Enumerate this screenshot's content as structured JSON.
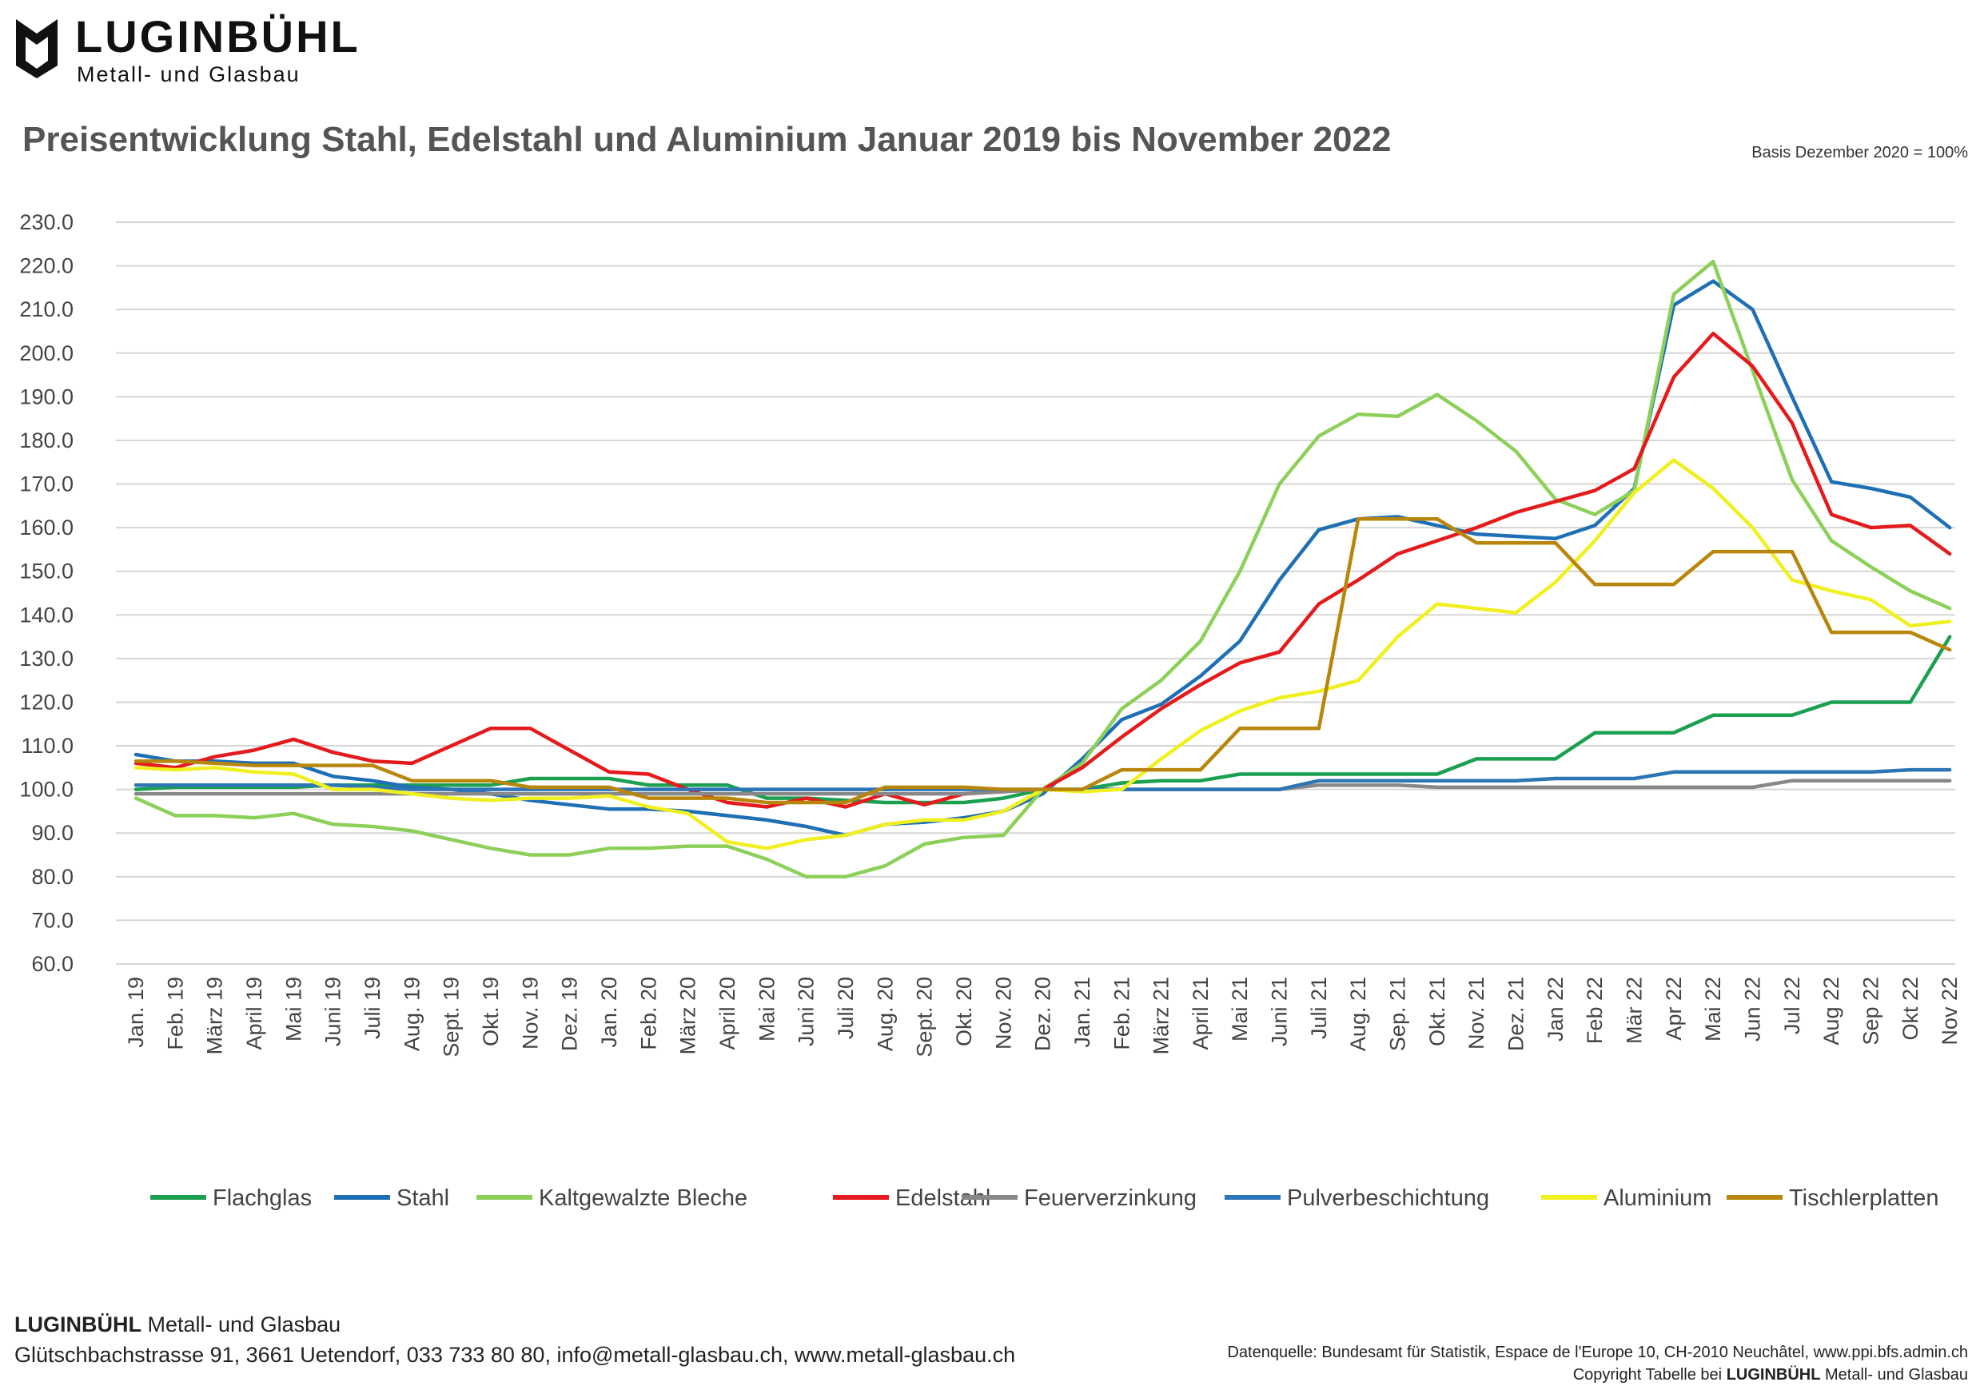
{
  "brand": {
    "name": "LUGINBÜHL",
    "subtitle": "Metall- und Glasbau"
  },
  "header": {
    "title": "Preisentwicklung Stahl, Edelstahl und Aluminium Januar 2019 bis November 2022",
    "basis": "Basis Dezember 2020 = 100%"
  },
  "chart_data": {
    "type": "line",
    "title": "Preisentwicklung Stahl, Edelstahl und Aluminium Januar 2019 bis November 2022",
    "xlabel": "",
    "ylabel": "",
    "ylim": [
      60,
      230
    ],
    "yticks": [
      "60.0",
      "70.0",
      "80.0",
      "90.0",
      "100.0",
      "110.0",
      "120.0",
      "130.0",
      "140.0",
      "150.0",
      "160.0",
      "170.0",
      "180.0",
      "190.0",
      "200.0",
      "210.0",
      "220.0",
      "230.0"
    ],
    "grid": true,
    "legend_position": "bottom",
    "categories": [
      "Jan. 19",
      "Feb. 19",
      "März 19",
      "April 19",
      "Mai 19",
      "Juni 19",
      "Juli 19",
      "Aug. 19",
      "Sept. 19",
      "Okt. 19",
      "Nov. 19",
      "Dez. 19",
      "Jan. 20",
      "Feb. 20",
      "März 20",
      "April 20",
      "Mai 20",
      "Juni 20",
      "Juli 20",
      "Aug. 20",
      "Sept. 20",
      "Okt. 20",
      "Nov. 20",
      "Dez. 20",
      "Jan. 21",
      "Feb. 21",
      "März 21",
      "April 21",
      "Mai 21",
      "Juni 21",
      "Juli 21",
      "Aug. 21",
      "Sep. 21",
      "Okt. 21",
      "Nov. 21",
      "Dez. 21",
      "Jan 22",
      "Feb 22",
      "Mär 22",
      "Apr 22",
      "Mai 22",
      "Jun 22",
      "Jul 22",
      "Aug 22",
      "Sep 22",
      "Okt 22",
      "Nov 22"
    ],
    "series": [
      {
        "name": "Flachglas",
        "color": "#1aa050",
        "values": [
          100,
          100.5,
          100.5,
          100.5,
          100.5,
          101,
          101,
          101,
          101,
          101,
          102.5,
          102.5,
          102.5,
          101,
          101,
          101,
          98,
          98,
          97.5,
          97,
          97,
          97,
          98,
          100,
          100,
          101.5,
          102,
          102,
          103.5,
          103.5,
          103.5,
          103.5,
          103.5,
          103.5,
          107,
          107,
          107,
          113,
          113,
          113,
          117,
          117,
          117,
          120,
          120,
          120,
          135
        ]
      },
      {
        "name": "Stahl",
        "color": "#1f6fb5",
        "values": [
          108,
          106.5,
          106.5,
          106,
          106,
          103,
          102,
          100.5,
          100,
          99,
          97.5,
          96.5,
          95.5,
          95.5,
          95,
          94,
          93,
          91.5,
          89.5,
          92,
          92.5,
          93.5,
          95,
          99,
          107,
          116,
          119.5,
          126,
          134,
          148,
          159.5,
          162,
          162.5,
          160.5,
          158.5,
          158,
          157.5,
          160.5,
          169,
          211,
          216.5,
          210,
          190,
          170.5,
          169,
          167,
          160
        ]
      },
      {
        "name": "Kaltgewalzte Bleche",
        "color": "#8cd05a",
        "values": [
          98,
          94,
          94,
          93.5,
          94.5,
          92,
          91.5,
          90.5,
          88.5,
          86.5,
          85,
          85,
          86.5,
          86.5,
          87,
          87,
          84,
          80,
          80,
          82.5,
          87.5,
          89,
          89.5,
          100,
          106,
          118.5,
          125,
          134,
          150,
          170,
          181,
          186,
          185.5,
          190.5,
          184.5,
          177.5,
          166.5,
          163,
          168.5,
          213.5,
          221,
          196,
          171,
          157,
          151,
          145.5,
          141.5
        ]
      },
      {
        "name": "Edelstahl",
        "color": "#e41a1c",
        "values": [
          106,
          105,
          107.5,
          109,
          111.5,
          108.5,
          106.5,
          106,
          110,
          114,
          114,
          109,
          104,
          103.5,
          100,
          97,
          96,
          98,
          96,
          99,
          96.5,
          99,
          99.5,
          100,
          105,
          112,
          118.5,
          124,
          129,
          131.5,
          142.5,
          148,
          154,
          157,
          160,
          163.5,
          166,
          168.5,
          173.5,
          194.5,
          204.5,
          197,
          184,
          163,
          160,
          160.5,
          154
        ]
      },
      {
        "name": "Feuerverzinkung",
        "color": "#888888",
        "values": [
          99,
          99,
          99,
          99,
          99,
          99,
          99,
          99,
          99,
          99,
          99,
          99,
          99,
          99,
          99,
          99,
          99,
          99,
          99,
          99,
          99,
          99,
          99.5,
          100,
          100,
          100,
          100,
          100,
          100,
          100,
          101,
          101,
          101,
          100.5,
          100.5,
          100.5,
          100.5,
          100.5,
          100.5,
          100.5,
          100.5,
          100.5,
          102,
          102,
          102,
          102,
          102
        ]
      },
      {
        "name": "Pulverbeschichtung",
        "color": "#2e75b6",
        "values": [
          101,
          101,
          101,
          101,
          101,
          101,
          100.5,
          100,
          100,
          100,
          100,
          100,
          100,
          100,
          100,
          100,
          100,
          100,
          100,
          100,
          100,
          100,
          100,
          100,
          100,
          100,
          100,
          100,
          100,
          100,
          102,
          102,
          102,
          102,
          102,
          102,
          102.5,
          102.5,
          102.5,
          104,
          104,
          104,
          104,
          104,
          104,
          104.5,
          104.5
        ]
      },
      {
        "name": "Aluminium",
        "color": "#f0f020",
        "values": [
          105,
          104.5,
          105,
          104,
          103.5,
          100,
          100,
          99,
          98,
          97.5,
          98,
          98,
          98.5,
          96,
          94.5,
          88,
          86.5,
          88.5,
          89.5,
          92,
          93,
          93,
          95,
          100,
          99.5,
          100,
          107,
          113.5,
          118,
          121,
          122.5,
          125,
          135,
          142.5,
          141.5,
          140.5,
          147.5,
          157,
          168,
          175.5,
          169,
          160,
          148,
          145.5,
          143.5,
          137.5,
          138.5
        ]
      },
      {
        "name": "Tischlerplatten",
        "color": "#b8860b",
        "values": [
          106.5,
          106.5,
          106,
          105.5,
          105.5,
          105.5,
          105.5,
          102,
          102,
          102,
          100.5,
          100.5,
          100.5,
          98,
          98,
          98,
          97,
          97,
          97,
          100.5,
          100.5,
          100.5,
          100,
          100,
          100,
          104.5,
          104.5,
          104.5,
          114,
          114,
          114,
          162,
          162,
          162,
          156.5,
          156.5,
          156.5,
          147,
          147,
          147,
          154.5,
          154.5,
          154.5,
          136,
          136,
          136,
          132
        ]
      }
    ]
  },
  "footer": {
    "brand": "LUGINBÜHL",
    "brand_rest": "Metall- und Glasbau",
    "address": "Glütschbachstrasse 91, 3661 Uetendorf, 033 733 80 80, info@metall-glasbau.ch, www.metall-glasbau.ch",
    "source": "Datenquelle:  Bundesamt für Statistik, Espace de l'Europe 10, CH-2010 Neuchâtel, www.ppi.bfs.admin.ch",
    "copyright_prefix": "Copyright Tabelle bei",
    "copyright_brand": "LUGINBÜHL",
    "copyright_suffix": "Metall- und Glasbau"
  }
}
